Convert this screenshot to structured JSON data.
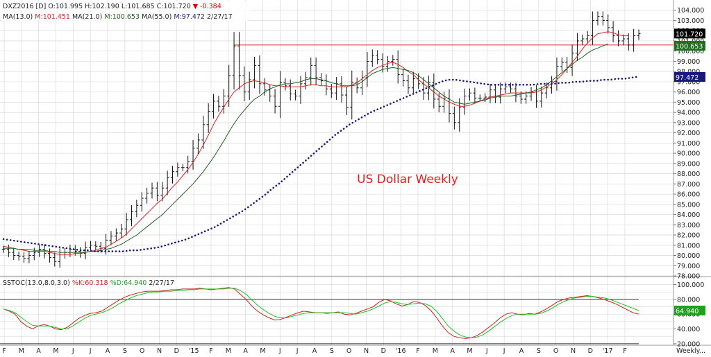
{
  "price_header": {
    "symbol": "DXZ2016",
    "period": "[D]",
    "open": "O:101.995",
    "high": "H:102.190",
    "low": "L:101.685",
    "close": "C:101.720",
    "change": "-0.384",
    "change_color": "#e00000"
  },
  "ma_header": {
    "ma13_label": "MA(13.0)",
    "ma13_value": "M:101.451",
    "ma21_label": "MA(21.0)",
    "ma21_value": "M:100.653",
    "ma55_label": "MA(55.0)",
    "ma55_value": "M:97.472",
    "date": "2/27/17"
  },
  "stoch_header": {
    "label": "SSTOC(13.0,8.0,3.0)",
    "k_value": "%K:60.318",
    "d_value": "%D:64.940",
    "date": "2/27/17"
  },
  "annotation": "US Dollar Weekly",
  "bottom_right_label": "Weekly...",
  "colors": {
    "ma13": "#e02020",
    "ma21": "#206020",
    "ma55": "#1a1a7a",
    "stoch_k": "#d02020",
    "stoch_d": "#20c020",
    "resistance": "#e03030",
    "grid": "#d9d9d9"
  },
  "price_tags": {
    "last": "101.720",
    "ma21": "100.653",
    "ma55": "97.472"
  },
  "stoch_tag": "64.940",
  "chart_data": [
    {
      "type": "ohlc",
      "title": "US Dollar Weekly",
      "ylim": [
        78,
        105
      ],
      "yticks": [
        "78.000",
        "79.000",
        "80.000",
        "81.000",
        "82.000",
        "83.000",
        "84.000",
        "85.000",
        "86.000",
        "87.000",
        "88.000",
        "89.000",
        "90.000",
        "91.000",
        "92.000",
        "93.000",
        "94.000",
        "95.000",
        "96.000",
        "97.000",
        "98.000",
        "99.000",
        "100.000",
        "101.000",
        "102.000",
        "103.000",
        "104.000"
      ],
      "xticks": [
        "F",
        "M",
        "A",
        "M",
        "J",
        "J",
        "A",
        "S",
        "O",
        "N",
        "D",
        "'15",
        "F",
        "M",
        "A",
        "M",
        "J",
        "J",
        "A",
        "S",
        "O",
        "N",
        "D",
        "'16",
        "F",
        "M",
        "A",
        "M",
        "J",
        "J",
        "A",
        "S",
        "O",
        "N",
        "D",
        "'17",
        "F"
      ],
      "resistance_level": 100.6,
      "close": [
        80.6,
        80.3,
        80.0,
        79.9,
        79.7,
        80.0,
        80.3,
        80.6,
        80.2,
        79.8,
        79.4,
        80.1,
        80.3,
        80.6,
        80.4,
        80.2,
        80.8,
        81.0,
        80.9,
        80.7,
        81.5,
        81.9,
        82.2,
        82.6,
        83.5,
        84.3,
        84.9,
        85.6,
        86.1,
        86.6,
        85.9,
        86.6,
        87.6,
        88.2,
        88.6,
        88.6,
        89.2,
        90.5,
        91.3,
        92.8,
        94.1,
        95.1,
        94.6,
        95.6,
        97.6,
        100.5,
        97.6,
        96.0,
        97.2,
        98.6,
        96.8,
        96.2,
        95.6,
        94.6,
        96.9,
        96.6,
        95.8,
        95.6,
        96.8,
        97.4,
        98.6,
        97.4,
        97.1,
        96.3,
        95.9,
        96.8,
        95.7,
        94.5,
        96.9,
        96.4,
        97.4,
        99.0,
        99.6,
        99.2,
        98.5,
        99.0,
        99.2,
        97.7,
        97.1,
        96.4,
        97.3,
        96.8,
        95.9,
        96.9,
        95.3,
        94.6,
        95.4,
        93.9,
        93.0,
        94.5,
        95.6,
        95.9,
        95.4,
        95.4,
        95.5,
        96.2,
        95.5,
        96.3,
        96.5,
        96.3,
        95.6,
        95.3,
        95.6,
        96.0,
        95.1,
        95.9,
        96.4,
        97.0,
        98.5,
        98.9,
        98.4,
        99.8,
        101.0,
        101.2,
        101.5,
        103.0,
        103.4,
        103.0,
        102.3,
        101.5,
        101.0,
        101.2,
        100.6,
        101.5,
        101.7
      ],
      "ma13": [
        80.9,
        80.8,
        80.7,
        80.6,
        80.5,
        80.4,
        80.4,
        80.4,
        80.4,
        80.3,
        80.2,
        80.1,
        80.1,
        80.1,
        80.2,
        80.2,
        80.3,
        80.4,
        80.5,
        80.7,
        80.8,
        81.1,
        81.4,
        81.7,
        82.1,
        82.6,
        83.1,
        83.6,
        84.1,
        84.6,
        85.1,
        85.5,
        86.1,
        86.7,
        87.2,
        87.8,
        88.4,
        89.1,
        89.9,
        90.8,
        91.8,
        92.8,
        93.7,
        94.5,
        95.3,
        96.0,
        96.4,
        96.8,
        97.0,
        97.1,
        97.0,
        96.9,
        96.7,
        96.6,
        96.6,
        96.5,
        96.5,
        96.5,
        96.5,
        96.6,
        96.7,
        96.7,
        96.6,
        96.6,
        96.5,
        96.5,
        96.5,
        96.5,
        96.7,
        96.9,
        97.3,
        97.7,
        98.1,
        98.4,
        98.6,
        98.8,
        98.9,
        98.7,
        98.4,
        98.0,
        97.7,
        97.2,
        96.8,
        96.4,
        96.0,
        95.6,
        95.3,
        95.0,
        94.8,
        94.6,
        94.6,
        94.7,
        94.9,
        95.1,
        95.3,
        95.5,
        95.6,
        95.7,
        95.8,
        95.9,
        95.9,
        95.9,
        95.9,
        95.9,
        96.0,
        96.2,
        96.5,
        96.8,
        97.2,
        97.7,
        98.3,
        98.9,
        99.5,
        100.2,
        100.8,
        101.3,
        101.7,
        101.8,
        101.9,
        101.8,
        101.6,
        101.5,
        101.5
      ],
      "ma21": [
        80.7,
        80.7,
        80.7,
        80.6,
        80.6,
        80.6,
        80.5,
        80.5,
        80.5,
        80.4,
        80.4,
        80.3,
        80.3,
        80.3,
        80.3,
        80.3,
        80.3,
        80.4,
        80.4,
        80.5,
        80.6,
        80.7,
        80.9,
        81.1,
        81.4,
        81.7,
        82.0,
        82.4,
        82.8,
        83.2,
        83.6,
        84.0,
        84.5,
        85.0,
        85.5,
        86.0,
        86.5,
        87.0,
        87.6,
        88.2,
        88.9,
        89.6,
        90.4,
        91.2,
        92.1,
        92.9,
        93.6,
        94.2,
        94.8,
        95.3,
        95.6,
        96.0,
        96.3,
        96.5,
        96.7,
        96.8,
        96.8,
        96.9,
        97.0,
        97.2,
        97.3,
        97.3,
        97.2,
        97.1,
        96.9,
        96.8,
        96.6,
        96.6,
        96.6,
        96.7,
        97.0,
        97.4,
        97.8,
        98.0,
        98.2,
        98.3,
        98.4,
        98.3,
        98.2,
        98.1,
        97.9,
        97.6,
        97.2,
        96.8,
        96.4,
        96.0,
        95.6,
        95.3,
        95.0,
        94.9,
        94.8,
        94.9,
        95.0,
        95.1,
        95.2,
        95.4,
        95.5,
        95.6,
        95.6,
        95.6,
        95.7,
        95.8,
        95.9,
        96.0,
        96.2,
        96.4,
        96.7,
        97.1,
        97.5,
        97.9,
        98.3,
        98.7,
        99.1,
        99.4,
        99.8,
        100.1,
        100.3,
        100.5,
        100.7
      ],
      "ma55": [
        81.6,
        81.5,
        81.4,
        81.3,
        81.2,
        81.1,
        81.0,
        80.9,
        80.8,
        80.7,
        80.6,
        80.5,
        80.5,
        80.4,
        80.4,
        80.4,
        80.4,
        80.4,
        80.5,
        80.5,
        80.6,
        80.7,
        80.8,
        81.0,
        81.2,
        81.4,
        81.6,
        81.9,
        82.2,
        82.5,
        82.8,
        83.2,
        83.6,
        84.0,
        84.4,
        84.9,
        85.4,
        85.9,
        86.5,
        87.0,
        87.6,
        88.2,
        88.8,
        89.4,
        90.0,
        90.6,
        91.2,
        91.8,
        92.3,
        92.8,
        93.2,
        93.6,
        94.0,
        94.3,
        94.6,
        94.9,
        95.2,
        95.5,
        95.8,
        96.1,
        96.4,
        96.7,
        97.0,
        97.2,
        97.2,
        97.1,
        97.0,
        96.9,
        96.8,
        96.7,
        96.7,
        96.7,
        96.7,
        96.7,
        96.7,
        96.7,
        96.8,
        96.8,
        96.8,
        96.9,
        96.9,
        97.0,
        97.0,
        97.1,
        97.1,
        97.2,
        97.2,
        97.3,
        97.3,
        97.4,
        97.5
      ]
    },
    {
      "type": "line",
      "title": "SSTOC(13.0,8.0,3.0)",
      "ylim": [
        18,
        108
      ],
      "yticks": [
        "20.000",
        "40.000",
        "60.000",
        "80.000",
        "100.000"
      ],
      "reference_lines": [
        20,
        80
      ],
      "series": [
        {
          "name": "%K",
          "values": [
            67,
            64,
            60,
            50,
            44,
            40,
            44,
            46,
            44,
            40,
            39,
            42,
            48,
            54,
            58,
            61,
            62,
            64,
            69,
            74,
            79,
            83,
            86,
            88,
            90,
            91,
            91,
            91,
            92,
            93,
            93,
            94,
            94,
            94,
            95,
            94,
            93,
            94,
            95,
            96,
            94,
            87,
            80,
            71,
            64,
            59,
            55,
            52,
            53,
            56,
            59,
            62,
            64,
            63,
            62,
            62,
            61,
            62,
            63,
            60,
            59,
            61,
            64,
            67,
            70,
            76,
            80,
            78,
            74,
            71,
            73,
            77,
            76,
            72,
            65,
            55,
            44,
            35,
            30,
            28,
            27,
            28,
            31,
            36,
            42,
            48,
            55,
            60,
            62,
            60,
            59,
            61,
            60,
            63,
            67,
            72,
            77,
            80,
            82,
            83,
            84,
            85,
            84,
            82,
            80,
            77,
            74,
            70,
            66,
            62,
            60
          ]
        },
        {
          "name": "%D",
          "values": [
            67,
            65,
            62,
            56,
            50,
            45,
            44,
            44,
            44,
            42,
            40,
            40,
            44,
            49,
            54,
            58,
            60,
            62,
            65,
            69,
            74,
            78,
            82,
            85,
            87,
            89,
            90,
            90,
            91,
            91,
            92,
            92,
            93,
            93,
            94,
            94,
            94,
            94,
            94,
            95,
            95,
            92,
            87,
            79,
            72,
            66,
            61,
            57,
            55,
            55,
            57,
            59,
            61,
            62,
            62,
            62,
            62,
            62,
            62,
            62,
            61,
            60,
            62,
            64,
            67,
            71,
            75,
            77,
            76,
            74,
            73,
            74,
            75,
            74,
            71,
            64,
            54,
            44,
            37,
            32,
            29,
            28,
            29,
            32,
            37,
            43,
            49,
            54,
            58,
            60,
            60,
            60,
            60,
            61,
            64,
            68,
            73,
            77,
            80,
            82,
            83,
            84,
            84,
            83,
            82,
            80,
            77,
            74,
            71,
            68,
            65
          ]
        }
      ],
      "xticks": [
        "F",
        "M",
        "A",
        "M",
        "J",
        "J",
        "A",
        "S",
        "O",
        "N",
        "D",
        "'15",
        "F",
        "M",
        "A",
        "M",
        "J",
        "J",
        "A",
        "S",
        "O",
        "N",
        "D",
        "'16",
        "F",
        "M",
        "A",
        "M",
        "J",
        "J",
        "A",
        "S",
        "O",
        "N",
        "D",
        "'17",
        "F"
      ]
    }
  ]
}
